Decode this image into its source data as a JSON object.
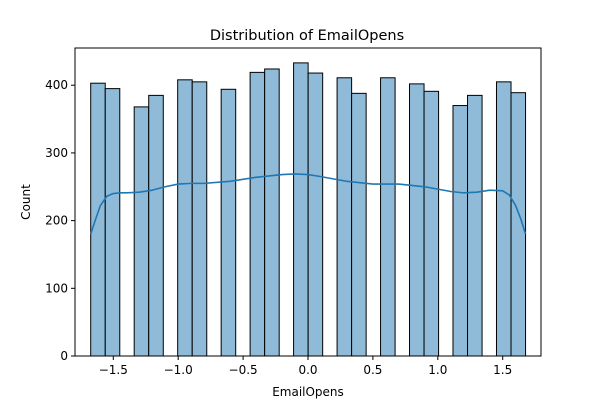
{
  "chart_data": {
    "type": "bar",
    "title": "Distribution of EmailOpens",
    "xlabel": "EmailOpens",
    "ylabel": "Count",
    "xlim": [
      -1.795,
      1.795
    ],
    "ylim": [
      0,
      455
    ],
    "xticks": [
      -1.5,
      -1.0,
      -0.5,
      0.0,
      0.5,
      1.0,
      1.5
    ],
    "xtick_labels": [
      "−1.5",
      "−1.0",
      "−0.5",
      "0.0",
      "0.5",
      "1.0",
      "1.5"
    ],
    "yticks": [
      0,
      100,
      200,
      300,
      400
    ],
    "ytick_labels": [
      "0",
      "100",
      "200",
      "300",
      "400"
    ],
    "bars": [
      {
        "x0": -1.674,
        "x1": -1.562,
        "value": 403
      },
      {
        "x0": -1.562,
        "x1": -1.45,
        "value": 395
      },
      {
        "x0": -1.339,
        "x1": -1.227,
        "value": 368
      },
      {
        "x0": -1.227,
        "x1": -1.115,
        "value": 385
      },
      {
        "x0": -1.004,
        "x1": -0.892,
        "value": 408
      },
      {
        "x0": -0.892,
        "x1": -0.78,
        "value": 405
      },
      {
        "x0": -0.669,
        "x1": -0.557,
        "value": 394
      },
      {
        "x0": -0.446,
        "x1": -0.334,
        "value": 419
      },
      {
        "x0": -0.334,
        "x1": -0.222,
        "value": 424
      },
      {
        "x0": -0.111,
        "x1": 0.001,
        "value": 433
      },
      {
        "x0": 0.001,
        "x1": 0.113,
        "value": 418
      },
      {
        "x0": 0.224,
        "x1": 0.336,
        "value": 411
      },
      {
        "x0": 0.336,
        "x1": 0.448,
        "value": 388
      },
      {
        "x0": 0.559,
        "x1": 0.671,
        "value": 411
      },
      {
        "x0": 0.782,
        "x1": 0.894,
        "value": 402
      },
      {
        "x0": 0.894,
        "x1": 1.006,
        "value": 391
      },
      {
        "x0": 1.117,
        "x1": 1.229,
        "value": 370
      },
      {
        "x0": 1.229,
        "x1": 1.341,
        "value": 385
      },
      {
        "x0": 1.452,
        "x1": 1.564,
        "value": 405
      },
      {
        "x0": 1.564,
        "x1": 1.676,
        "value": 389
      }
    ],
    "kde": {
      "x": [
        -1.674,
        -1.64,
        -1.6,
        -1.55,
        -1.5,
        -1.45,
        -1.4,
        -1.3,
        -1.2,
        -1.1,
        -1.0,
        -0.9,
        -0.8,
        -0.6,
        -0.4,
        -0.2,
        -0.1,
        0.0,
        0.1,
        0.3,
        0.5,
        0.7,
        0.9,
        1.1,
        1.2,
        1.3,
        1.4,
        1.5,
        1.55,
        1.6,
        1.64,
        1.676
      ],
      "y": [
        180,
        200,
        222,
        236,
        240,
        241,
        241,
        242,
        245,
        250,
        254,
        255,
        255,
        258,
        264,
        268,
        269,
        268,
        265,
        258,
        254,
        254,
        250,
        243,
        241,
        242,
        245,
        244,
        238,
        222,
        202,
        180
      ]
    },
    "bar_color": "#8fbbd9",
    "bar_edge_color": "#000000",
    "kde_color": "#1f77b4",
    "grid": false,
    "legend": "none"
  }
}
